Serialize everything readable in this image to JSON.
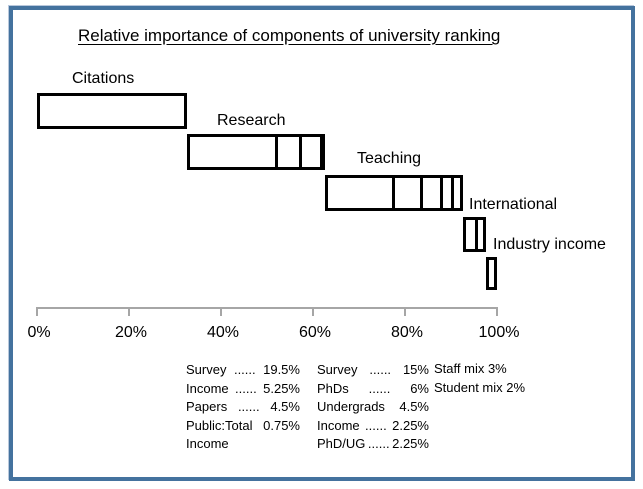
{
  "colors": {
    "slide_border": "#44729E",
    "box_stroke": "#000000",
    "axis_gray": "#a6a6a6",
    "text": "#000000",
    "background": "#ffffff"
  },
  "chart_data": {
    "type": "bar",
    "variant": "cascading-segmented-boxes",
    "title": "Relative importance of components of university ranking",
    "xlabel": "",
    "ylabel": "",
    "axis": {
      "min": 0,
      "max": 100,
      "unit": "%",
      "tick_values": [
        0,
        20,
        40,
        60,
        80,
        100
      ],
      "tick_labels": [
        "0%",
        "20%",
        "40%",
        "60%",
        "80%",
        "100%"
      ]
    },
    "components": [
      {
        "label": "Citations",
        "start": 0,
        "total": 32.5,
        "segments": [
          {
            "name": "Citations",
            "value": 32.5
          }
        ]
      },
      {
        "label": "Research",
        "start": 32.5,
        "total": 30,
        "segments": [
          {
            "name": "Survey",
            "value": 19.5
          },
          {
            "name": "Income",
            "value": 5.25
          },
          {
            "name": "Papers",
            "value": 4.5
          },
          {
            "name": "Public:Total Income",
            "value": 0.75
          }
        ]
      },
      {
        "label": "Teaching",
        "start": 62.5,
        "total": 30,
        "segments": [
          {
            "name": "Survey",
            "value": 15
          },
          {
            "name": "PhDs",
            "value": 6
          },
          {
            "name": "Undergrads",
            "value": 4.5
          },
          {
            "name": "Income",
            "value": 2.25
          },
          {
            "name": "PhD/UG",
            "value": 2.25
          }
        ]
      },
      {
        "label": "International",
        "start": 92.5,
        "total": 5,
        "segments": [
          {
            "name": "Staff mix",
            "value": 3
          },
          {
            "name": "Student mix",
            "value": 2
          }
        ]
      },
      {
        "label": "Industry income",
        "start": 97.5,
        "total": 2.5,
        "segments": [
          {
            "name": "Industry income",
            "value": 2.5
          }
        ]
      }
    ]
  },
  "annotations": {
    "research_breakdown": [
      {
        "label": "Survey",
        "dots": "......",
        "value": "19.5%"
      },
      {
        "label": "Income",
        "dots": "......",
        "value": "5.25%"
      },
      {
        "label": "Papers",
        "dots": "......",
        "value": "4.5%"
      },
      {
        "label": "Public:Total",
        "dots": "",
        "value": "0.75%"
      },
      {
        "label": "Income",
        "dots": "",
        "value": ""
      }
    ],
    "teaching_breakdown": [
      {
        "label": "Survey",
        "dots": "......",
        "value": "15%"
      },
      {
        "label": "PhDs",
        "dots": "......",
        "value": "6%"
      },
      {
        "label": "Undergrads",
        "dots": "",
        "value": "4.5%"
      },
      {
        "label": "Income",
        "dots": "......",
        "value": "2.25%"
      },
      {
        "label": "PhD/UG",
        "dots": "......",
        "value": "2.25%"
      }
    ],
    "international_breakdown": [
      "Staff mix 3%",
      "Student mix 2%"
    ]
  }
}
